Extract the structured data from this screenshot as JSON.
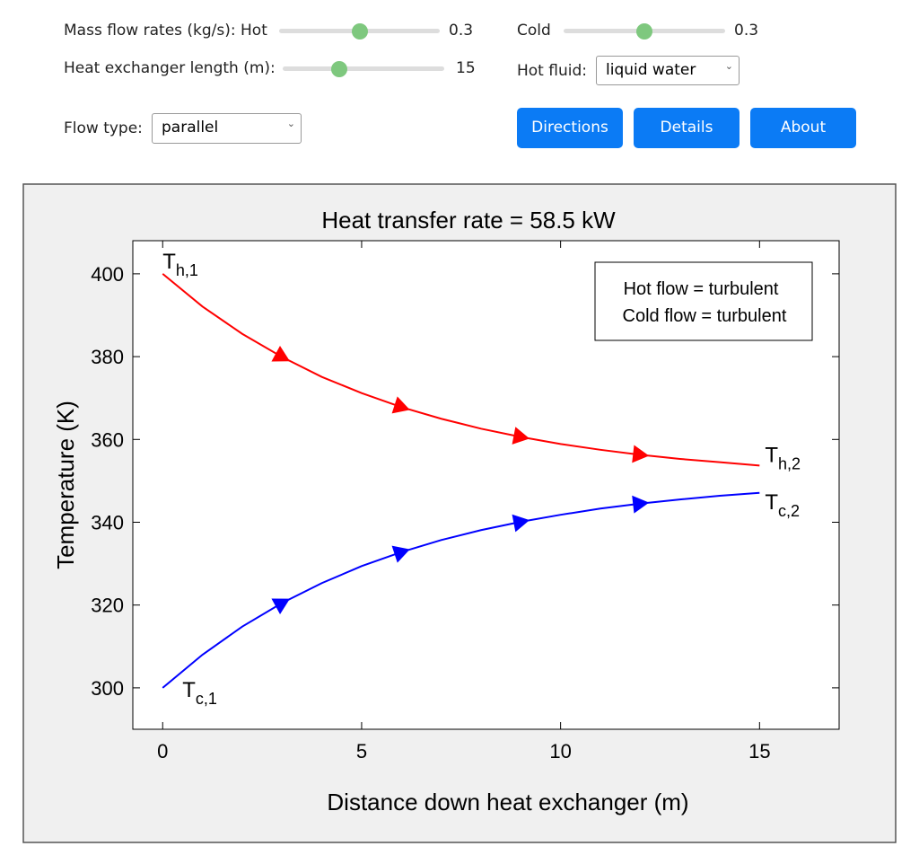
{
  "controls": {
    "mass_flow_label": "Mass flow rates (kg/s): Hot",
    "hot_flow": "0.3",
    "cold_label": "Cold",
    "cold_flow": "0.3",
    "length_label": "Heat exchanger length (m):",
    "length": "15",
    "hot_fluid_label": "Hot fluid:",
    "hot_fluid": "liquid water",
    "flow_type_label": "Flow type:",
    "flow_type": "parallel",
    "buttons": [
      "Directions",
      "Details",
      "About"
    ]
  },
  "chart_data": {
    "type": "line",
    "title": "Heat transfer rate = 58.5 kW",
    "xlabel": "Distance down heat exchanger (m)",
    "ylabel": "Temperature (K)",
    "x": [
      0,
      1,
      2,
      3,
      4,
      5,
      6,
      7,
      8,
      9,
      10,
      11,
      12,
      13,
      14,
      15
    ],
    "series": [
      {
        "color": "#ff0000",
        "values": [
          400.0,
          392.1,
          385.5,
          379.9,
          375.1,
          371.2,
          367.8,
          365.0,
          362.6,
          360.6,
          358.9,
          357.5,
          356.3,
          355.3,
          354.5,
          353.7
        ]
      },
      {
        "color": "#0000ff",
        "values": [
          300.0,
          308.0,
          314.8,
          320.5,
          325.3,
          329.4,
          332.8,
          335.7,
          338.1,
          340.1,
          341.8,
          343.3,
          344.5,
          345.5,
          346.4,
          347.1
        ]
      }
    ],
    "xlim": [
      -0.75,
      17
    ],
    "ylim": [
      290,
      408
    ],
    "xticks": [
      0,
      5,
      10,
      15
    ],
    "yticks": [
      300,
      320,
      340,
      360,
      380,
      400
    ],
    "annotations": [
      {
        "text": "T",
        "sub": "h,1"
      },
      {
        "text": "T",
        "sub": "h,2"
      },
      {
        "text": "T",
        "sub": "c,1"
      },
      {
        "text": "T",
        "sub": "c,2"
      }
    ],
    "flow_box": [
      "Hot flow = turbulent",
      "Cold flow = turbulent"
    ]
  }
}
